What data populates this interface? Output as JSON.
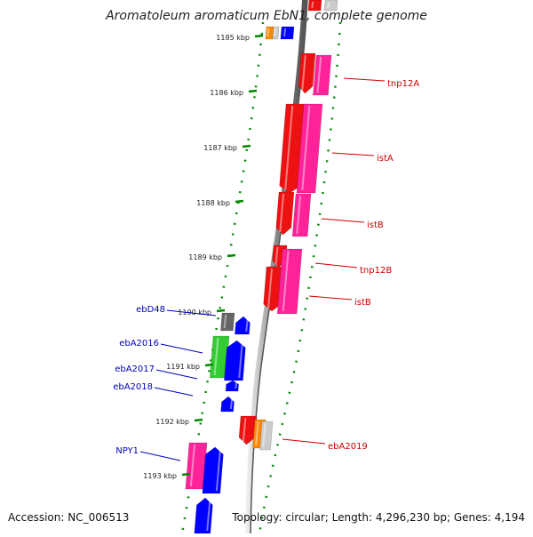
{
  "title": "Aromatoleum aromaticum EbN1, complete genome",
  "accession": "Accession: NC_006513",
  "topology": "Topology: circular; Length: 4,296,230 bp; Genes: 4,194",
  "ticks": [
    "1185 kbp",
    "1186 kbp",
    "1187 kbp",
    "1188 kbp",
    "1189 kbp",
    "1190 kbp",
    "1191 kbp",
    "1192 kbp",
    "1193 kbp"
  ],
  "labels_right": [
    "tnp12A",
    "istA",
    "istB",
    "tnp12B",
    "istB",
    "ebA2019"
  ],
  "labels_left": [
    "ebD48",
    "ebA2016",
    "ebA2017",
    "ebA2018",
    "NPY1"
  ],
  "colors": {
    "red": "#ee1111",
    "pink": "#ff2299",
    "blue": "#0000ff",
    "green": "#33cc33",
    "orange": "#ff8800",
    "gray": "#666666",
    "lightgray": "#cccccc",
    "tick_green": "#008800",
    "backbone": "#888888",
    "label_red": "#cc0000",
    "label_blue": "#0000bb"
  }
}
